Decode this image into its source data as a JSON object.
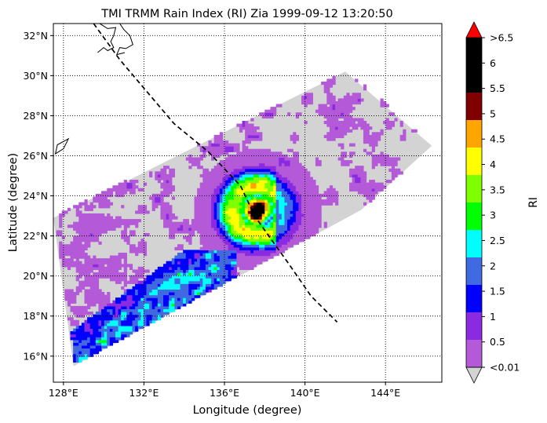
{
  "chart_data": {
    "type": "heatmap",
    "title": "TMI TRMM Rain Index (RI) Zia 1999-09-12 13:20:50",
    "xlabel": "Longitude (degree)",
    "ylabel": "Latitude (degree)",
    "xlim": [
      127.5,
      146.8
    ],
    "ylim": [
      14.7,
      32.6
    ],
    "x_ticks": [
      {
        "value": 128,
        "label": "128°E"
      },
      {
        "value": 132,
        "label": "132°E"
      },
      {
        "value": 136,
        "label": "136°E"
      },
      {
        "value": 140,
        "label": "140°E"
      },
      {
        "value": 144,
        "label": "144°E"
      }
    ],
    "y_ticks": [
      {
        "value": 16,
        "label": "16°N"
      },
      {
        "value": 18,
        "label": "18°N"
      },
      {
        "value": 20,
        "label": "20°N"
      },
      {
        "value": 22,
        "label": "22°N"
      },
      {
        "value": 24,
        "label": "24°N"
      },
      {
        "value": 26,
        "label": "26°N"
      },
      {
        "value": 28,
        "label": "28°N"
      },
      {
        "value": 30,
        "label": "30°N"
      },
      {
        "value": 32,
        "label": "32°N"
      }
    ],
    "grid": "dotted",
    "colorbar": {
      "label": "RI",
      "under_color": "#d3d3d3",
      "over_color": "#ff0000",
      "ticks": [
        "<0.01",
        "0.5",
        "1",
        "1.5",
        "2",
        "2.5",
        "3",
        "3.5",
        "4",
        "4.5",
        "5",
        "5.5",
        "6",
        ">6.5"
      ],
      "levels": [
        {
          "from": 0.01,
          "to": 0.5,
          "color": "#b45ad8"
        },
        {
          "from": 0.5,
          "to": 1.0,
          "color": "#8a2be2"
        },
        {
          "from": 1.0,
          "to": 1.5,
          "color": "#0000ff"
        },
        {
          "from": 1.5,
          "to": 2.0,
          "color": "#4169e1"
        },
        {
          "from": 2.0,
          "to": 2.5,
          "color": "#00ffff"
        },
        {
          "from": 2.5,
          "to": 3.0,
          "color": "#00ff00"
        },
        {
          "from": 3.0,
          "to": 3.5,
          "color": "#7fff00"
        },
        {
          "from": 3.5,
          "to": 4.0,
          "color": "#ffff00"
        },
        {
          "from": 4.0,
          "to": 4.5,
          "color": "#ffa500"
        },
        {
          "from": 4.5,
          "to": 5.0,
          "color": "#800000"
        },
        {
          "from": 5.0,
          "to": 6.5,
          "color": "#000000"
        }
      ]
    },
    "swath_corners": [
      [
        127.5,
        22.9
      ],
      [
        142.0,
        30.2
      ],
      [
        146.3,
        26.5
      ],
      [
        142.8,
        23.3
      ],
      [
        128.5,
        15.5
      ]
    ],
    "storm_track": [
      [
        129.5,
        32.6
      ],
      [
        130.8,
        30.8
      ],
      [
        133.5,
        27.6
      ],
      [
        135.2,
        26.2
      ],
      [
        136.8,
        24.5
      ],
      [
        137.5,
        23.0
      ],
      [
        138.2,
        22.0
      ],
      [
        139.2,
        20.6
      ],
      [
        140.3,
        19.0
      ],
      [
        141.6,
        17.7
      ]
    ],
    "storm_center": [
      137.6,
      23.2
    ],
    "rain_field_description": "Mostly light rain (<0.5) across swath; intense core 4.5-6.5 near 137.6E 23.2N surrounded by rings of 3.5-4.5, 2.5-3.5, 1-2.5; band of 1-2 RI along south-west edge 128.5-136E 16-21N"
  }
}
